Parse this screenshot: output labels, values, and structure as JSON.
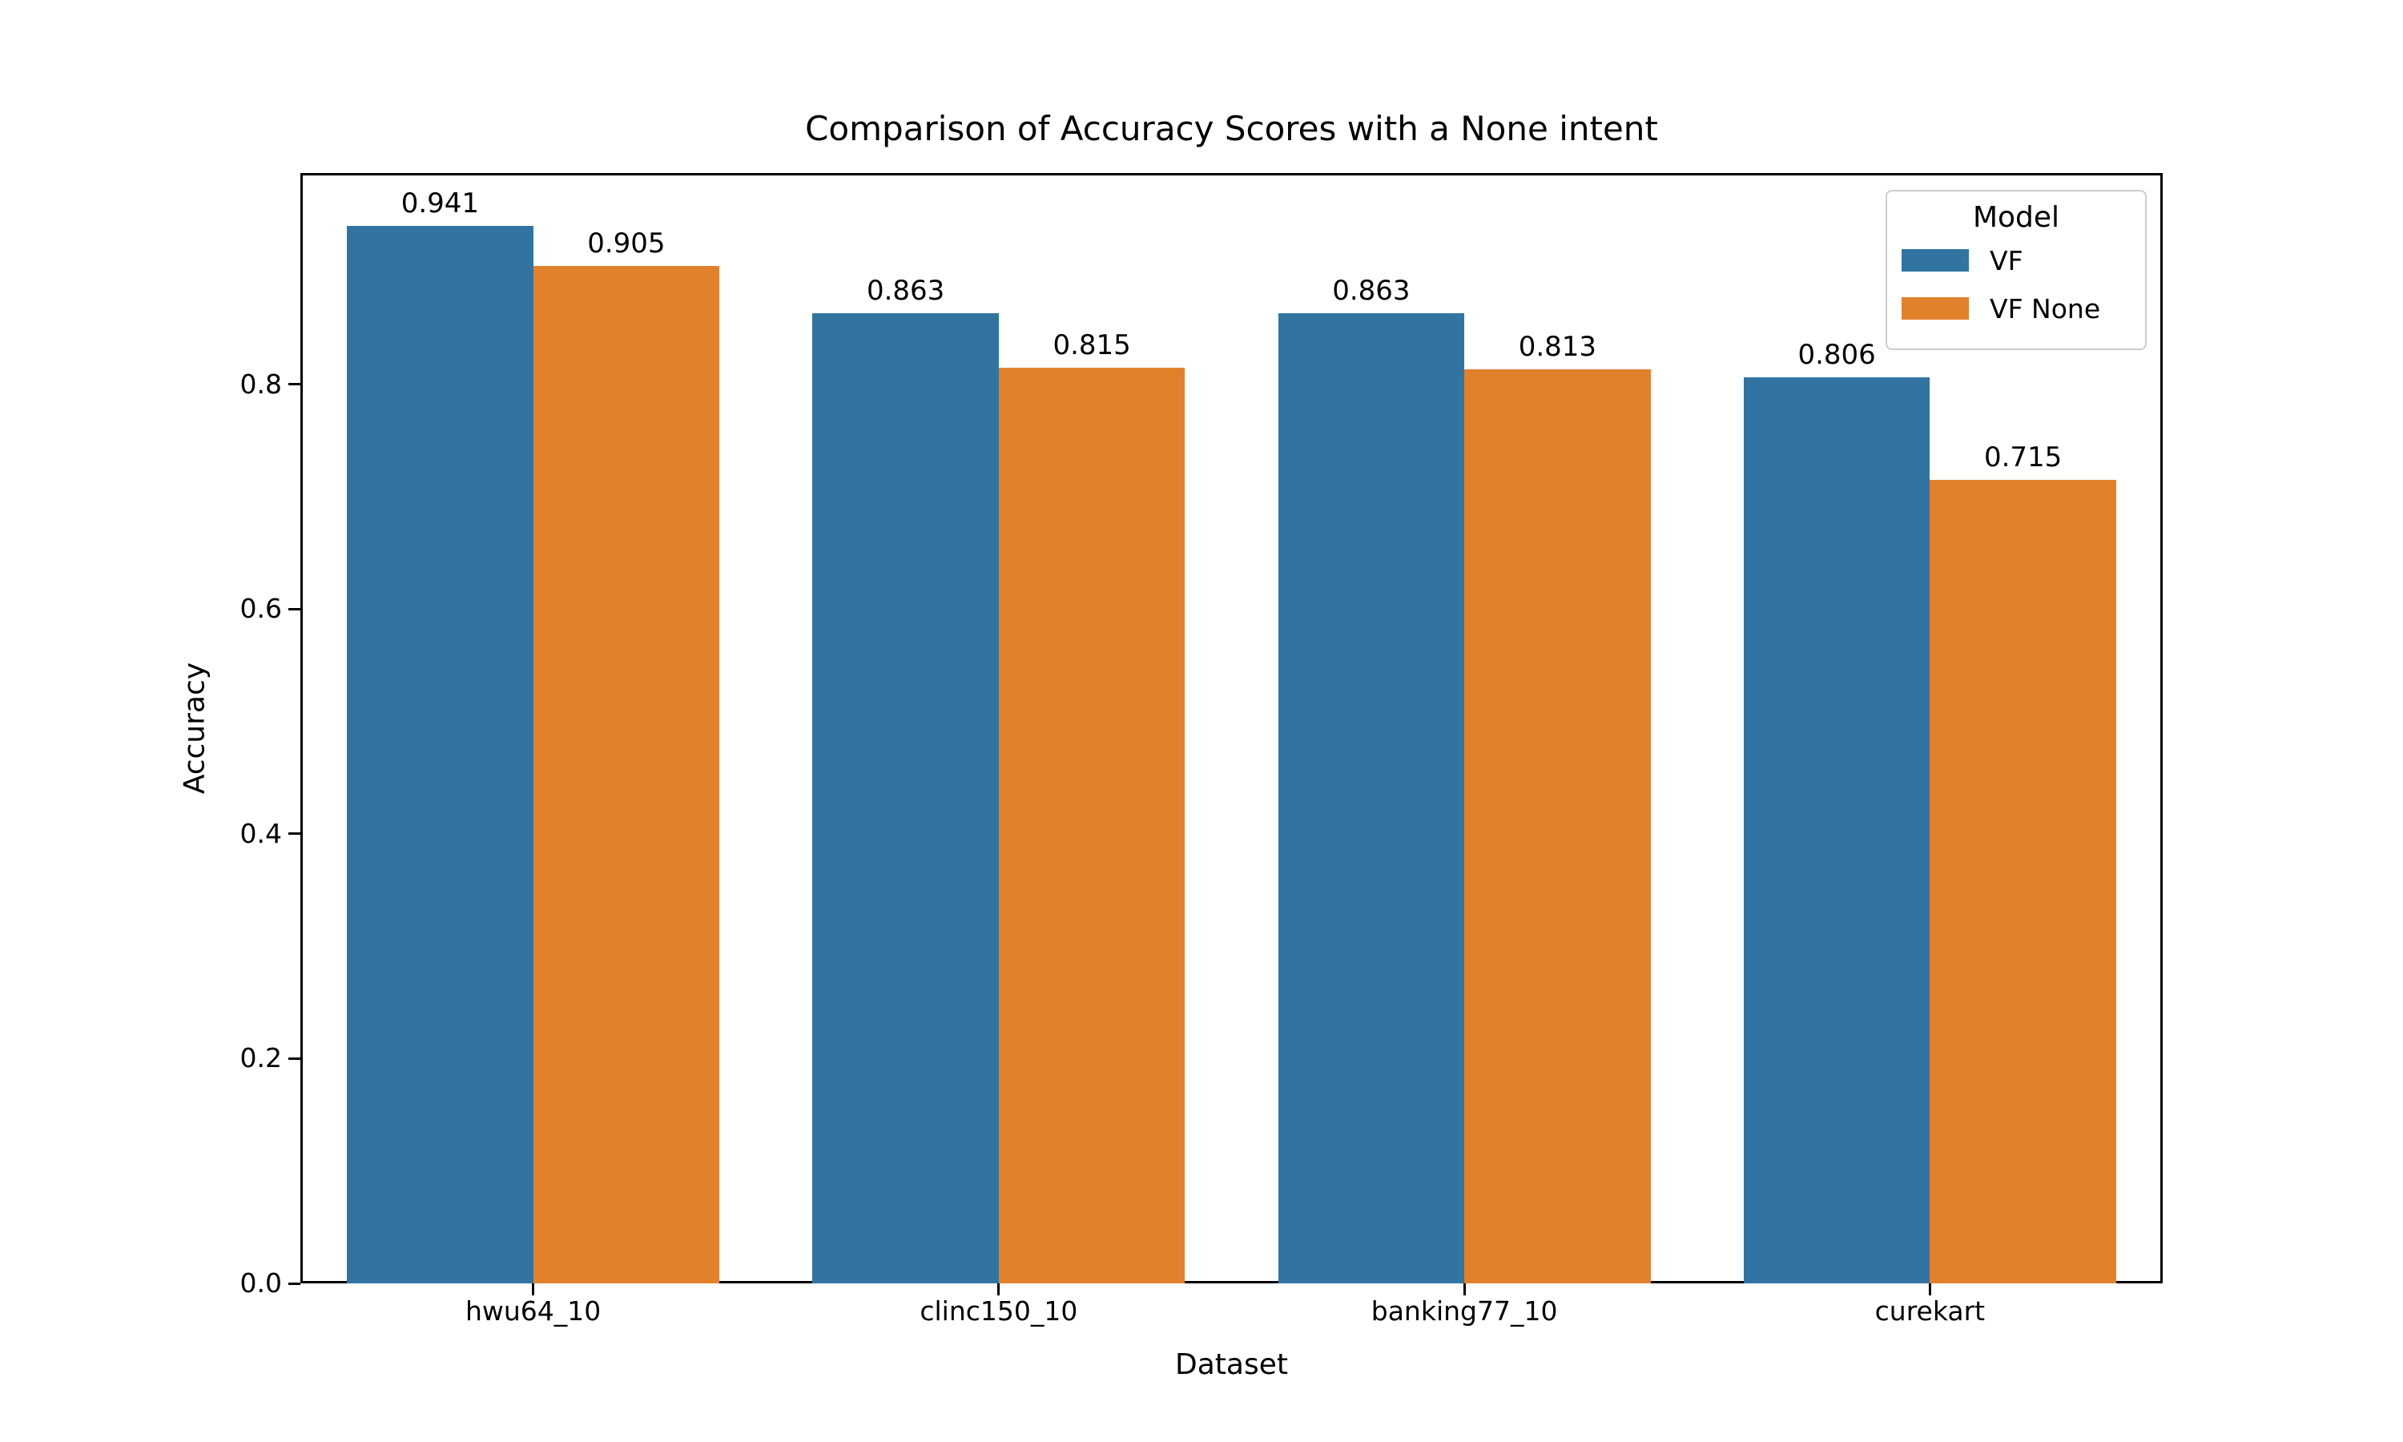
{
  "chart_data": {
    "type": "bar",
    "title": "Comparison of Accuracy Scores with a None intent",
    "xlabel": "Dataset",
    "ylabel": "Accuracy",
    "categories": [
      "hwu64_10",
      "clinc150_10",
      "banking77_10",
      "curekart"
    ],
    "series": [
      {
        "name": "VF",
        "color": "#3274a1",
        "values": [
          0.941,
          0.863,
          0.863,
          0.806
        ]
      },
      {
        "name": "VF None",
        "color": "#e1812c",
        "values": [
          0.905,
          0.815,
          0.813,
          0.715
        ]
      }
    ],
    "bar_labels": [
      [
        "0.941",
        "0.863",
        "0.863",
        "0.806"
      ],
      [
        "0.905",
        "0.815",
        "0.813",
        "0.715"
      ]
    ],
    "ylim": [
      0,
      0.988
    ],
    "yticks": [
      0.0,
      0.2,
      0.4,
      0.6,
      0.8
    ],
    "ytick_labels": [
      "0.0",
      "0.2",
      "0.4",
      "0.6",
      "0.8"
    ],
    "legend": {
      "title": "Model",
      "position": "upper-right"
    },
    "grid": false,
    "axis_color": "#000000",
    "background_color": "#ffffff"
  }
}
